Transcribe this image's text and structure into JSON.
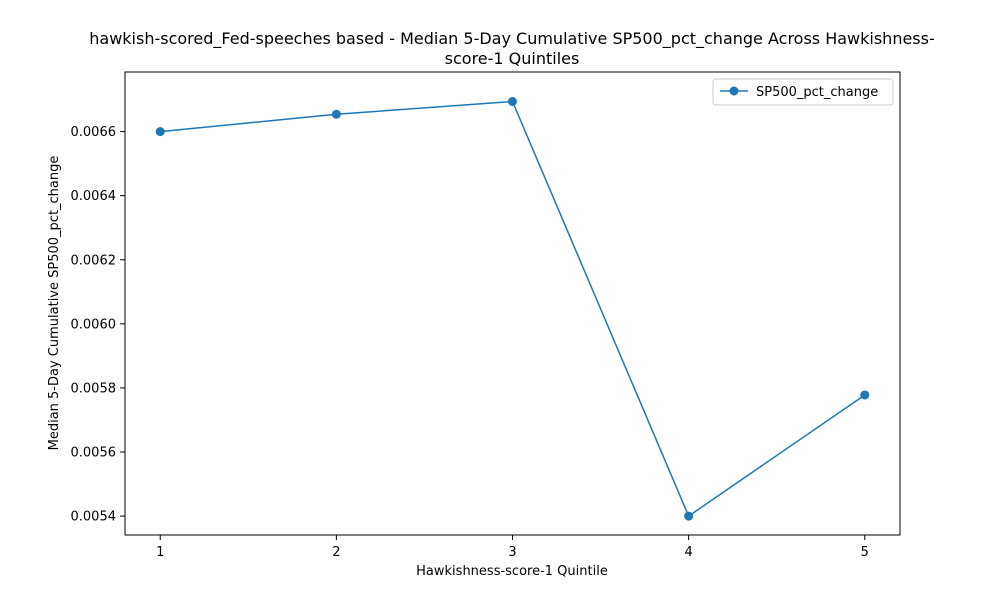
{
  "chart_data": {
    "type": "line",
    "title": "hawkish-scored_Fed-speeches based - Median 5-Day Cumulative SP500_pct_change Across Hawkishness-score-1 Quintiles",
    "title_lines": [
      "hawkish-scored_Fed-speeches based - Median 5-Day Cumulative SP500_pct_change Across Hawkishness-",
      "score-1 Quintiles"
    ],
    "xlabel": "Hawkishness-score-1 Quintile",
    "ylabel": "Median 5-Day Cumulative SP500_pct_change",
    "x": [
      1,
      2,
      3,
      4,
      5
    ],
    "xticks": [
      "1",
      "2",
      "3",
      "4",
      "5"
    ],
    "xlim": [
      0.8,
      5.2
    ],
    "ylim": [
      0.005341,
      0.006786
    ],
    "yticks": [
      0.0054,
      0.0056,
      0.0058,
      0.006,
      0.0062,
      0.0064,
      0.0066
    ],
    "ytick_labels": [
      "0.0054",
      "0.0056",
      "0.0058",
      "0.0060",
      "0.0062",
      "0.0064",
      "0.0066"
    ],
    "grid": false,
    "legend_position": "top-right",
    "series": [
      {
        "name": "SP500_pct_change",
        "color": "#1f77b4",
        "marker": "circle",
        "values": [
          0.0066,
          0.006654,
          0.006694,
          0.0054,
          0.005778
        ]
      }
    ]
  }
}
